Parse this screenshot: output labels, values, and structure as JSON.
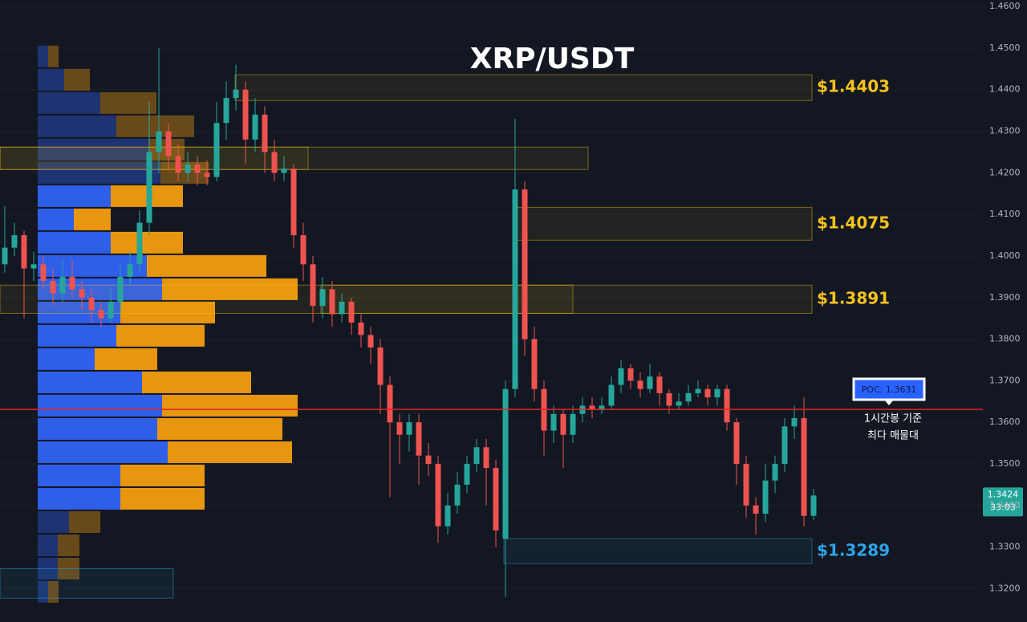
{
  "chart_data": {
    "type": "candlestick",
    "title": "XRP/USDT",
    "ylim": [
      1.3193,
      1.4608
    ],
    "yticks": [
      {
        "value": 1.32,
        "label": "1.3200"
      },
      {
        "value": 1.33,
        "label": "1.3300"
      },
      {
        "value": 1.34,
        "label": "1.3400"
      },
      {
        "value": 1.35,
        "label": "1.3500"
      },
      {
        "value": 1.36,
        "label": "1.3600"
      },
      {
        "value": 1.37,
        "label": "1.3700"
      },
      {
        "value": 1.38,
        "label": "1.3800"
      },
      {
        "value": 1.39,
        "label": "1.3900"
      },
      {
        "value": 1.4,
        "label": "1.4000"
      },
      {
        "value": 1.41,
        "label": "1.4100"
      },
      {
        "value": 1.42,
        "label": "1.4200"
      },
      {
        "value": 1.43,
        "label": "1.4300"
      },
      {
        "value": 1.44,
        "label": "1.4400"
      },
      {
        "value": 1.45,
        "label": "1.4500"
      },
      {
        "value": 1.46,
        "label": "1.4600"
      }
    ],
    "grid": true,
    "up_color": "#26a69a",
    "down_color": "#ef5350",
    "ohlc": [
      [
        1.398,
        1.412,
        1.396,
        1.402
      ],
      [
        1.402,
        1.408,
        1.4,
        1.405
      ],
      [
        1.405,
        1.406,
        1.385,
        1.397
      ],
      [
        1.397,
        1.401,
        1.394,
        1.398
      ],
      [
        1.398,
        1.4,
        1.392,
        1.394
      ],
      [
        1.394,
        1.397,
        1.388,
        1.391
      ],
      [
        1.391,
        1.399,
        1.389,
        1.395
      ],
      [
        1.395,
        1.399,
        1.39,
        1.392
      ],
      [
        1.392,
        1.394,
        1.387,
        1.39
      ],
      [
        1.39,
        1.392,
        1.384,
        1.387
      ],
      [
        1.387,
        1.389,
        1.383,
        1.385
      ],
      [
        1.385,
        1.392,
        1.384,
        1.389
      ],
      [
        1.389,
        1.398,
        1.386,
        1.395
      ],
      [
        1.395,
        1.401,
        1.393,
        1.398
      ],
      [
        1.398,
        1.411,
        1.396,
        1.408
      ],
      [
        1.408,
        1.437,
        1.405,
        1.425
      ],
      [
        1.425,
        1.45,
        1.42,
        1.43
      ],
      [
        1.43,
        1.432,
        1.421,
        1.424
      ],
      [
        1.424,
        1.427,
        1.418,
        1.42
      ],
      [
        1.42,
        1.425,
        1.418,
        1.422
      ],
      [
        1.422,
        1.424,
        1.417,
        1.42
      ],
      [
        1.42,
        1.423,
        1.417,
        1.419
      ],
      [
        1.419,
        1.437,
        1.418,
        1.432
      ],
      [
        1.432,
        1.442,
        1.428,
        1.438
      ],
      [
        1.438,
        1.446,
        1.435,
        1.44
      ],
      [
        1.44,
        1.442,
        1.422,
        1.428
      ],
      [
        1.428,
        1.438,
        1.425,
        1.434
      ],
      [
        1.434,
        1.436,
        1.42,
        1.425
      ],
      [
        1.425,
        1.428,
        1.418,
        1.42
      ],
      [
        1.42,
        1.424,
        1.418,
        1.421
      ],
      [
        1.421,
        1.422,
        1.402,
        1.405
      ],
      [
        1.405,
        1.408,
        1.394,
        1.398
      ],
      [
        1.398,
        1.4,
        1.384,
        1.388
      ],
      [
        1.388,
        1.395,
        1.385,
        1.392
      ],
      [
        1.392,
        1.394,
        1.383,
        1.386
      ],
      [
        1.386,
        1.391,
        1.384,
        1.389
      ],
      [
        1.389,
        1.39,
        1.381,
        1.384
      ],
      [
        1.384,
        1.386,
        1.378,
        1.381
      ],
      [
        1.381,
        1.383,
        1.374,
        1.378
      ],
      [
        1.378,
        1.38,
        1.362,
        1.369
      ],
      [
        1.369,
        1.371,
        1.342,
        1.36
      ],
      [
        1.36,
        1.362,
        1.35,
        1.357
      ],
      [
        1.357,
        1.362,
        1.353,
        1.36
      ],
      [
        1.36,
        1.362,
        1.345,
        1.352
      ],
      [
        1.352,
        1.355,
        1.347,
        1.35
      ],
      [
        1.35,
        1.352,
        1.331,
        1.335
      ],
      [
        1.335,
        1.343,
        1.333,
        1.34
      ],
      [
        1.34,
        1.348,
        1.338,
        1.345
      ],
      [
        1.345,
        1.352,
        1.343,
        1.35
      ],
      [
        1.35,
        1.356,
        1.348,
        1.354
      ],
      [
        1.354,
        1.356,
        1.34,
        1.349
      ],
      [
        1.349,
        1.351,
        1.33,
        1.334
      ],
      [
        1.332,
        1.37,
        1.318,
        1.368
      ],
      [
        1.368,
        1.433,
        1.366,
        1.416
      ],
      [
        1.416,
        1.418,
        1.376,
        1.38
      ],
      [
        1.38,
        1.383,
        1.365,
        1.368
      ],
      [
        1.368,
        1.37,
        1.352,
        1.358
      ],
      [
        1.358,
        1.364,
        1.355,
        1.362
      ],
      [
        1.362,
        1.363,
        1.349,
        1.357
      ],
      [
        1.357,
        1.364,
        1.355,
        1.362
      ],
      [
        1.362,
        1.366,
        1.36,
        1.364
      ],
      [
        1.364,
        1.366,
        1.361,
        1.363
      ],
      [
        1.363,
        1.366,
        1.362,
        1.364
      ],
      [
        1.364,
        1.371,
        1.363,
        1.369
      ],
      [
        1.369,
        1.375,
        1.367,
        1.373
      ],
      [
        1.373,
        1.374,
        1.368,
        1.37
      ],
      [
        1.37,
        1.372,
        1.366,
        1.368
      ],
      [
        1.368,
        1.374,
        1.367,
        1.371
      ],
      [
        1.371,
        1.372,
        1.364,
        1.367
      ],
      [
        1.367,
        1.368,
        1.362,
        1.364
      ],
      [
        1.364,
        1.367,
        1.363,
        1.365
      ],
      [
        1.365,
        1.369,
        1.364,
        1.367
      ],
      [
        1.367,
        1.37,
        1.366,
        1.368
      ],
      [
        1.368,
        1.369,
        1.364,
        1.366
      ],
      [
        1.366,
        1.369,
        1.364,
        1.368
      ],
      [
        1.368,
        1.369,
        1.358,
        1.36
      ],
      [
        1.36,
        1.361,
        1.345,
        1.35
      ],
      [
        1.35,
        1.352,
        1.337,
        1.34
      ],
      [
        1.34,
        1.342,
        1.333,
        1.338
      ],
      [
        1.338,
        1.35,
        1.336,
        1.346
      ],
      [
        1.346,
        1.352,
        1.343,
        1.35
      ],
      [
        1.35,
        1.361,
        1.348,
        1.359
      ],
      [
        1.359,
        1.364,
        1.356,
        1.361
      ],
      [
        1.361,
        1.366,
        1.335,
        1.3375
      ],
      [
        1.3375,
        1.344,
        1.3365,
        1.3424
      ]
    ],
    "volume_profile": {
      "price": [
        1.448,
        1.4424,
        1.4368,
        1.4312,
        1.4256,
        1.42,
        1.4144,
        1.4088,
        1.4032,
        1.3976,
        1.392,
        1.3864,
        1.3808,
        1.3752,
        1.3696,
        1.364,
        1.3584,
        1.3528,
        1.3472,
        1.3416,
        1.336,
        1.3304,
        1.3248,
        1.3192
      ],
      "buy": [
        13,
        33,
        78,
        98,
        138,
        153,
        91,
        45,
        91,
        136,
        155,
        103,
        98,
        71,
        130,
        155,
        149,
        162,
        103,
        103,
        39,
        25,
        25,
        13
      ],
      "sell": [
        13,
        32,
        70,
        97,
        45,
        60,
        90,
        46,
        90,
        149,
        169,
        118,
        110,
        78,
        136,
        169,
        156,
        155,
        105,
        105,
        39,
        27,
        27,
        13
      ],
      "buy_color": "#2f5ee8",
      "sell_color": "#e8960f",
      "value_area": [
        1.3416,
        1.4144
      ]
    },
    "zones": [
      {
        "top": 1.4436,
        "bottom": 1.4374,
        "label": "$1.4403",
        "color": "#f7c21b"
      },
      {
        "top": 1.4262,
        "bottom": 1.4208,
        "color": "#f7c21b"
      },
      {
        "top": 1.4262,
        "bottom": 1.4208,
        "color": "#f7c21b"
      },
      {
        "top": 1.4117,
        "bottom": 1.4038,
        "label": "$1.4075",
        "color": "#f7c21b"
      },
      {
        "top": 1.393,
        "bottom": 1.3862,
        "label": "$1.3891",
        "color": "#f7c21b"
      },
      {
        "top": 1.393,
        "bottom": 1.3862,
        "color": "#f7c21b"
      },
      {
        "top": 1.332,
        "bottom": 1.326,
        "label": "$1.3289",
        "color": "#2ea4e8"
      },
      {
        "top": 1.3248,
        "bottom": 1.3177,
        "color": "#2ea4e8"
      }
    ],
    "poc": {
      "value": 1.3631,
      "label": "POC: 1.3631",
      "color": "#e02424"
    },
    "annotation": [
      "1시간봉 기준",
      "최다 매물대"
    ],
    "last_price": 1.3424,
    "countdown": "33:03"
  }
}
